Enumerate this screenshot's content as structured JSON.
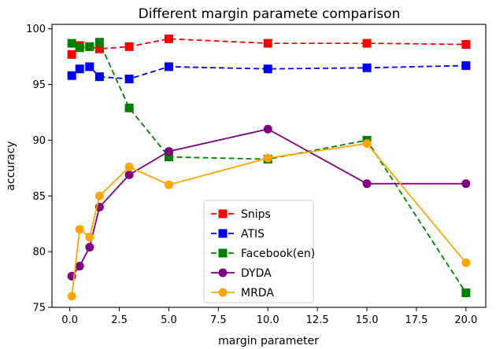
{
  "chart_data": {
    "type": "line",
    "title": "Different margin paramete comparison",
    "xlabel": "margin parameter",
    "ylabel": "accuracy",
    "xlim": [
      -0.9,
      21.0
    ],
    "ylim": [
      75.0,
      100.4
    ],
    "xticks": [
      0.0,
      2.5,
      5.0,
      7.5,
      10.0,
      12.5,
      15.0,
      17.5,
      20.0
    ],
    "xtick_labels": [
      "0.0",
      "2.5",
      "5.0",
      "7.5",
      "10.0",
      "12.5",
      "15.0",
      "17.5",
      "20.0"
    ],
    "yticks": [
      75,
      80,
      85,
      90,
      95,
      100
    ],
    "ytick_labels": [
      "75",
      "80",
      "85",
      "90",
      "95",
      "100"
    ],
    "grid": false,
    "legend_position": "lower-center",
    "series": [
      {
        "name": "Snips",
        "color": "#ff0000",
        "line_style": "dashed",
        "marker": "square",
        "x": [
          0.1,
          0.5,
          1.0,
          1.5,
          3.0,
          5.0,
          10.0,
          15.0,
          20.0
        ],
        "y": [
          97.7,
          98.5,
          98.4,
          98.2,
          98.4,
          99.1,
          98.7,
          98.7,
          98.6
        ]
      },
      {
        "name": "ATIS",
        "color": "#0000ff",
        "line_style": "dashed",
        "marker": "square",
        "x": [
          0.1,
          0.5,
          1.0,
          1.5,
          3.0,
          5.0,
          10.0,
          15.0,
          20.0
        ],
        "y": [
          95.8,
          96.4,
          96.6,
          95.7,
          95.5,
          96.6,
          96.4,
          96.5,
          96.7
        ]
      },
      {
        "name": "Facebook(en)",
        "color": "#008000",
        "line_style": "dashed",
        "marker": "square",
        "x": [
          0.1,
          0.5,
          1.0,
          1.5,
          3.0,
          5.0,
          10.0,
          15.0,
          20.0
        ],
        "y": [
          98.7,
          98.3,
          98.4,
          98.8,
          92.9,
          88.5,
          88.3,
          90.0,
          76.3
        ]
      },
      {
        "name": "DYDA",
        "color": "#800080",
        "line_style": "solid",
        "marker": "circle",
        "x": [
          0.1,
          0.5,
          1.0,
          1.5,
          3.0,
          5.0,
          10.0,
          15.0,
          20.0
        ],
        "y": [
          77.8,
          78.7,
          80.4,
          84.0,
          86.9,
          89.0,
          91.0,
          86.1,
          86.1
        ]
      },
      {
        "name": "MRDA",
        "color": "#ffa500",
        "line_style": "solid",
        "marker": "circle",
        "x": [
          0.1,
          0.5,
          1.0,
          1.5,
          3.0,
          5.0,
          10.0,
          15.0,
          20.0
        ],
        "y": [
          76.0,
          82.0,
          81.3,
          85.0,
          87.6,
          86.0,
          88.4,
          89.7,
          79.0
        ]
      }
    ]
  }
}
